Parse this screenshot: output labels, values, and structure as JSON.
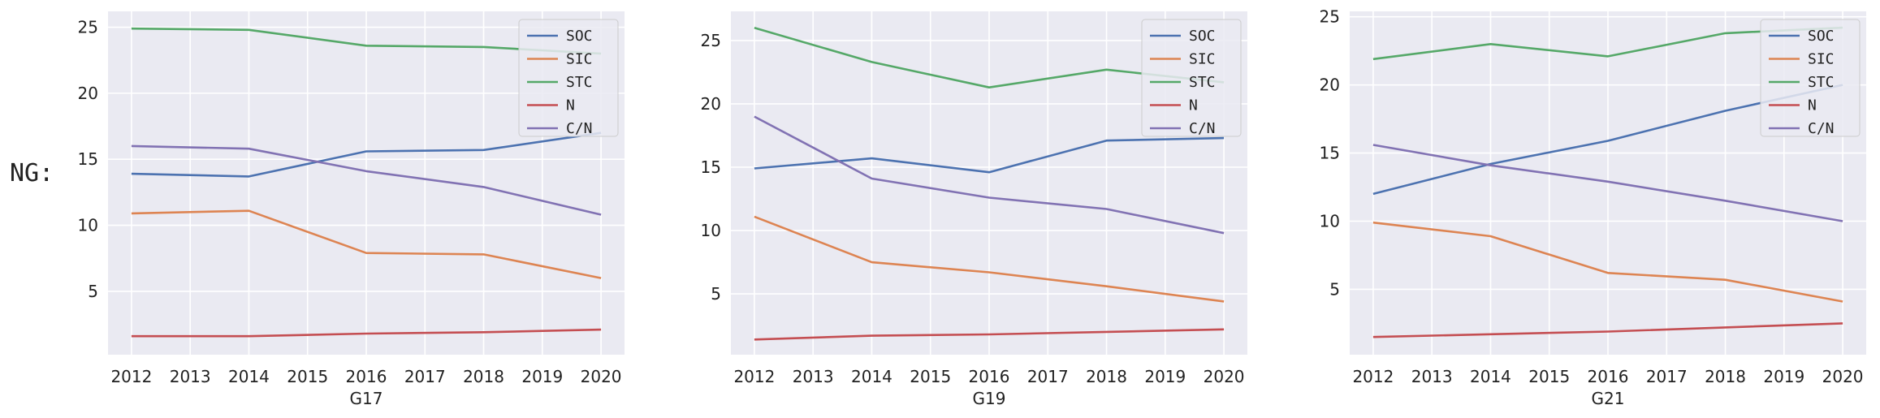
{
  "row_label": "NG:",
  "colors": {
    "SOC": "#4c72b0",
    "SIC": "#dd8452",
    "STC": "#55a868",
    "N": "#c44e52",
    "C/N": "#8172b3",
    "plot_bg": "#eaeaf2",
    "grid": "#ffffff"
  },
  "chart_data": [
    {
      "type": "line",
      "xlabel": "G17",
      "x_ticks": [
        "2012",
        "2013",
        "2014",
        "2015",
        "2016",
        "2017",
        "2018",
        "2019",
        "2020"
      ],
      "y_ticks": [
        5,
        10,
        15,
        20,
        25
      ],
      "xlim": [
        2011.6,
        2020.4
      ],
      "ylim": [
        0.2,
        26.2
      ],
      "legend": "top-right",
      "x": [
        2012,
        2014,
        2016,
        2018,
        2020
      ],
      "series": [
        {
          "name": "SOC",
          "values": [
            13.9,
            13.7,
            15.6,
            15.7,
            17.0
          ]
        },
        {
          "name": "SIC",
          "values": [
            10.9,
            11.1,
            7.9,
            7.8,
            6.0
          ]
        },
        {
          "name": "STC",
          "values": [
            24.9,
            24.8,
            23.6,
            23.5,
            23.0
          ]
        },
        {
          "name": "N",
          "values": [
            1.6,
            1.6,
            1.8,
            1.9,
            2.1
          ]
        },
        {
          "name": "C/N",
          "values": [
            16.0,
            15.8,
            14.1,
            12.9,
            10.8
          ]
        }
      ]
    },
    {
      "type": "line",
      "xlabel": "G19",
      "x_ticks": [
        "2012",
        "2013",
        "2014",
        "2015",
        "2016",
        "2017",
        "2018",
        "2019",
        "2020"
      ],
      "y_ticks": [
        5,
        10,
        15,
        20,
        25
      ],
      "xlim": [
        2011.6,
        2020.4
      ],
      "ylim": [
        0.2,
        27.3
      ],
      "legend": "top-right",
      "x": [
        2012,
        2014,
        2016,
        2018,
        2020
      ],
      "series": [
        {
          "name": "SOC",
          "values": [
            14.9,
            15.7,
            14.6,
            17.1,
            17.3
          ]
        },
        {
          "name": "SIC",
          "values": [
            11.1,
            7.5,
            6.7,
            5.6,
            4.4
          ]
        },
        {
          "name": "STC",
          "values": [
            26.0,
            23.3,
            21.3,
            22.7,
            21.7
          ]
        },
        {
          "name": "N",
          "values": [
            1.4,
            1.7,
            1.8,
            2.0,
            2.2
          ]
        },
        {
          "name": "C/N",
          "values": [
            19.0,
            14.1,
            12.6,
            11.7,
            9.8
          ]
        }
      ]
    },
    {
      "type": "line",
      "xlabel": "G21",
      "x_ticks": [
        "2012",
        "2013",
        "2014",
        "2015",
        "2016",
        "2017",
        "2018",
        "2019",
        "2020"
      ],
      "y_ticks": [
        5,
        10,
        15,
        20,
        25
      ],
      "xlim": [
        2011.6,
        2020.4
      ],
      "ylim": [
        0.2,
        25.4
      ],
      "legend": "top-right",
      "x": [
        2012,
        2014,
        2016,
        2018,
        2020
      ],
      "series": [
        {
          "name": "SOC",
          "values": [
            12.0,
            14.2,
            15.9,
            18.1,
            20.0
          ]
        },
        {
          "name": "SIC",
          "values": [
            9.9,
            8.9,
            6.2,
            5.7,
            4.1
          ]
        },
        {
          "name": "STC",
          "values": [
            21.9,
            23.0,
            22.1,
            23.8,
            24.2
          ]
        },
        {
          "name": "N",
          "values": [
            1.5,
            1.7,
            1.9,
            2.2,
            2.5
          ]
        },
        {
          "name": "C/N",
          "values": [
            15.6,
            14.1,
            12.9,
            11.5,
            10.0
          ]
        }
      ]
    }
  ]
}
